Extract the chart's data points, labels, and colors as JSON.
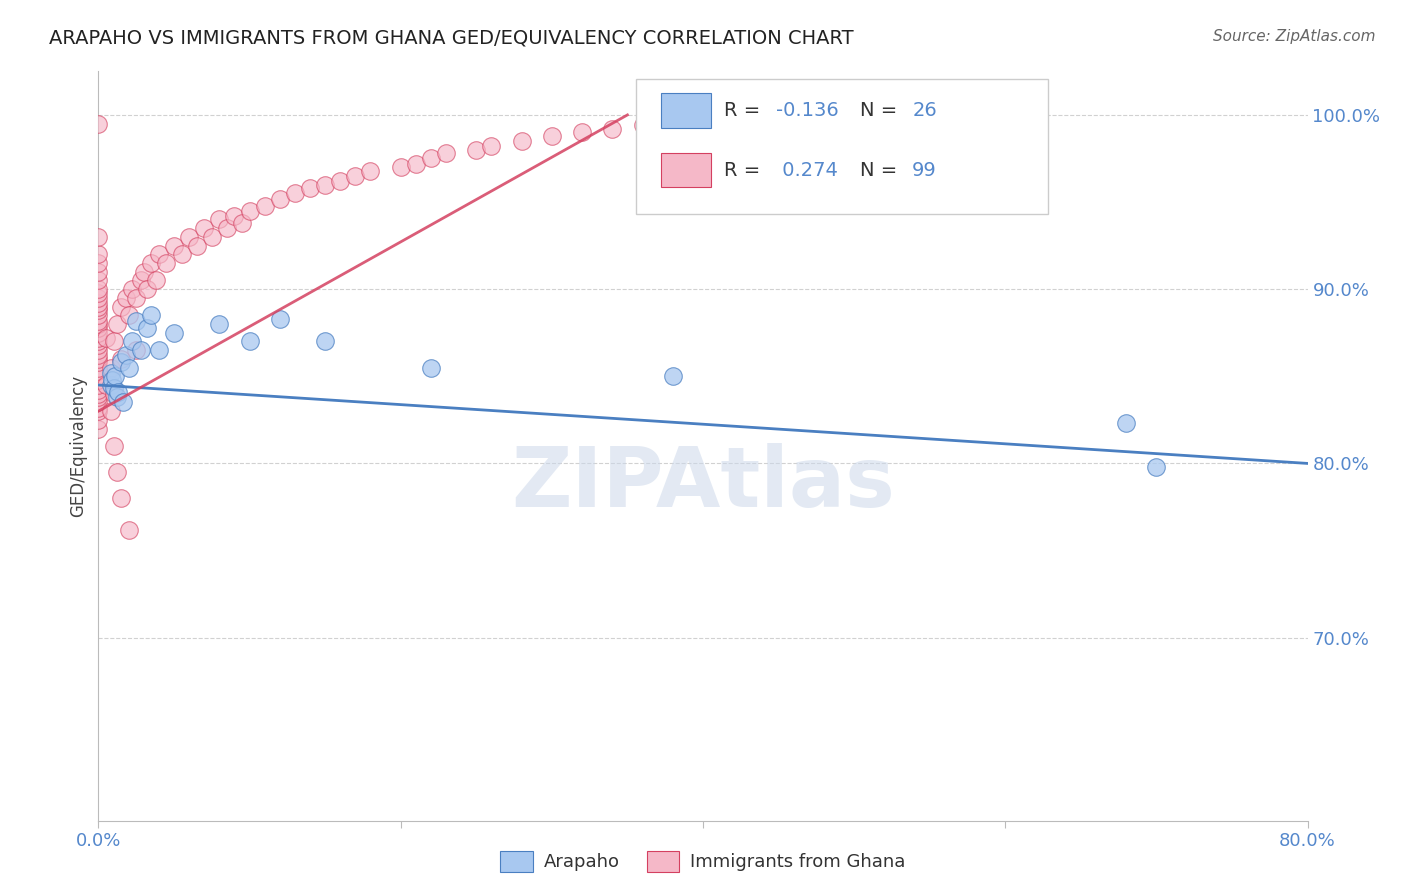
{
  "title": "ARAPAHO VS IMMIGRANTS FROM GHANA GED/EQUIVALENCY CORRELATION CHART",
  "source": "Source: ZipAtlas.com",
  "ylabel": "GED/Equivalency",
  "legend_label1": "Arapaho",
  "legend_label2": "Immigrants from Ghana",
  "R1": -0.136,
  "N1": 26,
  "R2": 0.274,
  "N2": 99,
  "color1": "#a8c8f0",
  "color2": "#f5b8c8",
  "trendline1_color": "#4a7fc1",
  "trendline2_color": "#d44060",
  "watermark": "ZIPAtlas",
  "xlim": [
    0.0,
    0.8
  ],
  "ylim": [
    0.595,
    1.025
  ],
  "yticks": [
    0.7,
    0.8,
    0.9,
    1.0
  ],
  "ytick_labels": [
    "70.0%",
    "80.0%",
    "90.0%",
    "100.0%"
  ],
  "arapaho_x": [
    0.008,
    0.008,
    0.009,
    0.01,
    0.011,
    0.012,
    0.013,
    0.015,
    0.016,
    0.018,
    0.02,
    0.022,
    0.025,
    0.028,
    0.032,
    0.035,
    0.04,
    0.05,
    0.08,
    0.1,
    0.12,
    0.15,
    0.22,
    0.38,
    0.68,
    0.7
  ],
  "arapaho_y": [
    0.845,
    0.852,
    0.848,
    0.843,
    0.85,
    0.838,
    0.841,
    0.858,
    0.835,
    0.862,
    0.855,
    0.87,
    0.882,
    0.865,
    0.878,
    0.885,
    0.865,
    0.875,
    0.88,
    0.87,
    0.883,
    0.87,
    0.855,
    0.85,
    0.823,
    0.798
  ],
  "ghana_x": [
    0.0,
    0.0,
    0.0,
    0.0,
    0.0,
    0.0,
    0.0,
    0.0,
    0.0,
    0.0,
    0.0,
    0.0,
    0.0,
    0.0,
    0.0,
    0.0,
    0.0,
    0.0,
    0.0,
    0.0,
    0.0,
    0.0,
    0.0,
    0.0,
    0.0,
    0.0,
    0.0,
    0.0,
    0.0,
    0.0,
    0.0,
    0.0,
    0.0,
    0.0,
    0.0,
    0.0,
    0.0,
    0.005,
    0.005,
    0.008,
    0.008,
    0.01,
    0.01,
    0.012,
    0.015,
    0.015,
    0.018,
    0.02,
    0.022,
    0.025,
    0.025,
    0.028,
    0.03,
    0.032,
    0.035,
    0.038,
    0.04,
    0.045,
    0.05,
    0.055,
    0.06,
    0.065,
    0.07,
    0.075,
    0.08,
    0.085,
    0.09,
    0.095,
    0.1,
    0.11,
    0.12,
    0.13,
    0.14,
    0.15,
    0.16,
    0.17,
    0.18,
    0.2,
    0.21,
    0.22,
    0.23,
    0.25,
    0.26,
    0.28,
    0.3,
    0.32,
    0.34,
    0.36,
    0.38,
    0.4,
    0.42,
    0.44,
    0.46,
    0.48,
    0.5,
    0.01,
    0.012,
    0.015,
    0.02
  ],
  "ghana_y": [
    0.82,
    0.825,
    0.83,
    0.832,
    0.835,
    0.838,
    0.84,
    0.842,
    0.845,
    0.848,
    0.85,
    0.853,
    0.855,
    0.858,
    0.86,
    0.862,
    0.865,
    0.868,
    0.87,
    0.872,
    0.875,
    0.878,
    0.88,
    0.882,
    0.885,
    0.888,
    0.89,
    0.892,
    0.895,
    0.898,
    0.9,
    0.905,
    0.91,
    0.915,
    0.92,
    0.93,
    0.995,
    0.845,
    0.872,
    0.855,
    0.83,
    0.87,
    0.84,
    0.88,
    0.89,
    0.86,
    0.895,
    0.885,
    0.9,
    0.895,
    0.865,
    0.905,
    0.91,
    0.9,
    0.915,
    0.905,
    0.92,
    0.915,
    0.925,
    0.92,
    0.93,
    0.925,
    0.935,
    0.93,
    0.94,
    0.935,
    0.942,
    0.938,
    0.945,
    0.948,
    0.952,
    0.955,
    0.958,
    0.96,
    0.962,
    0.965,
    0.968,
    0.97,
    0.972,
    0.975,
    0.978,
    0.98,
    0.982,
    0.985,
    0.988,
    0.99,
    0.992,
    0.994,
    0.996,
    0.998,
    0.999,
    1.0,
    0.985,
    0.99,
    0.995,
    0.81,
    0.795,
    0.78,
    0.762
  ]
}
